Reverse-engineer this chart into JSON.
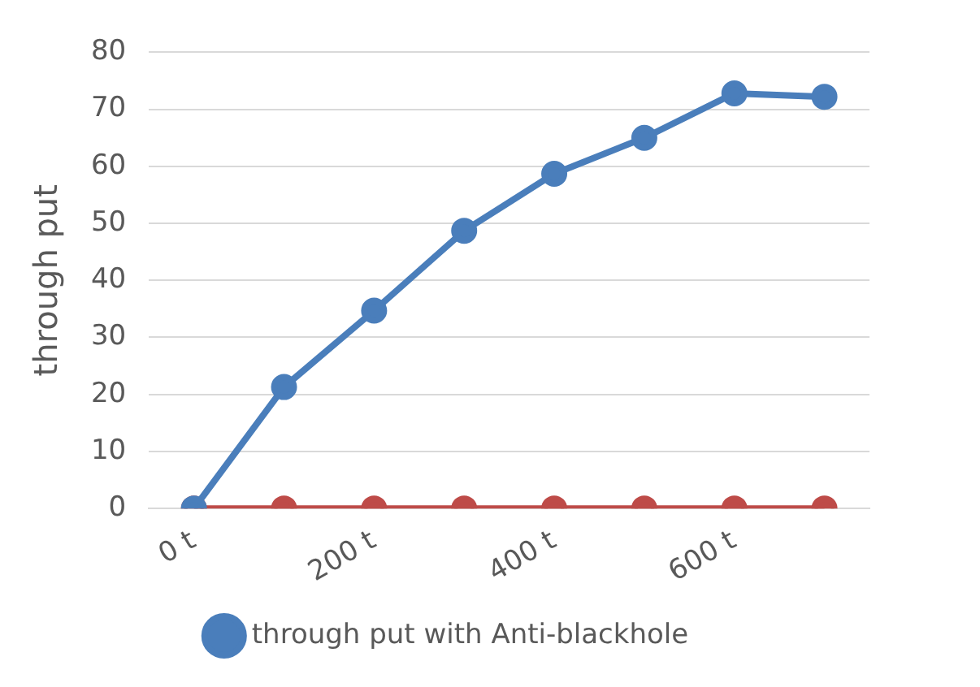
{
  "chart_data": {
    "type": "line",
    "ylabel": "through put",
    "categories": [
      "0 t",
      null,
      "200 t",
      null,
      "400 t",
      null,
      "600 t",
      null
    ],
    "series": [
      {
        "name": "through put with Anti-blackhole",
        "color": "#4a7ebb",
        "values": [
          0,
          21.3,
          34.7,
          48.7,
          58.7,
          65,
          72.8,
          72.2
        ]
      },
      {
        "color": "#be4b48",
        "values": [
          0,
          0,
          0,
          0,
          0,
          0,
          0,
          0
        ]
      }
    ],
    "ylim": [
      0,
      80
    ],
    "yticks": [
      0,
      10,
      20,
      30,
      40,
      50,
      60,
      70,
      80
    ],
    "grid": "y",
    "legend": "bottom",
    "marker": "circle",
    "line_style": "solid"
  }
}
